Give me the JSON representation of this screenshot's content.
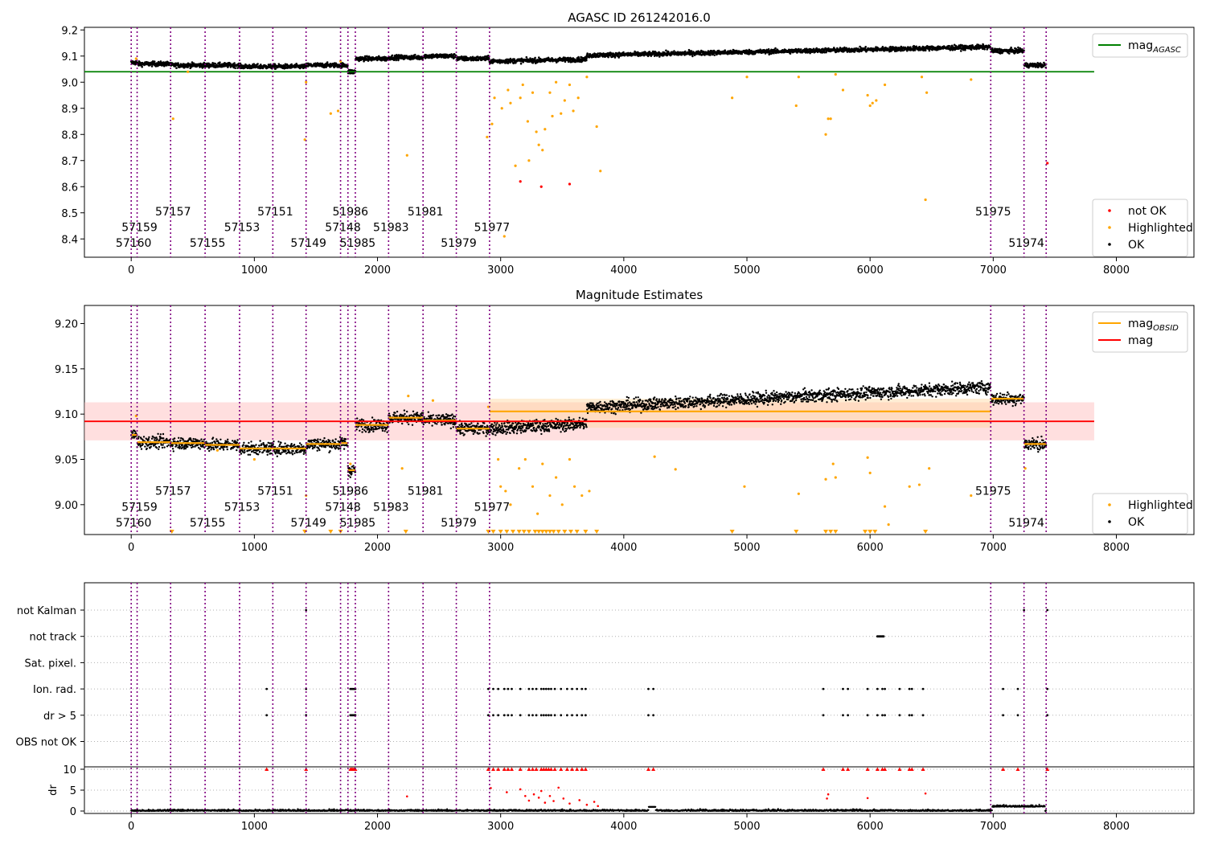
{
  "figure": {
    "panels": [
      {
        "title": "AGASC ID 261242016.0"
      },
      {
        "title": "Magnitude Estimates"
      },
      {
        "title": ""
      }
    ]
  },
  "colors": {
    "ok": "#000000",
    "highlighted": "#FFA500",
    "not_ok": "#FF0000",
    "agasc_line": "#008000",
    "obs_line": "#FFA500",
    "mag_line": "#FF0000",
    "obs_boundary": "#800080",
    "mag_band": "#FFC0C0",
    "obs_band": "#FFD8A0",
    "grid": "#B0B0B0"
  },
  "chart_data": [
    {
      "type": "scatter",
      "title": "AGASC ID 261242016.0",
      "xlim": [
        -380,
        8630
      ],
      "ylim": [
        8.33,
        9.21
      ],
      "xticks": [
        0,
        1000,
        2000,
        3000,
        4000,
        5000,
        6000,
        7000,
        8000
      ],
      "yticks": [
        8.4,
        8.5,
        8.6,
        8.7,
        8.8,
        8.9,
        9.0,
        9.1,
        9.2
      ],
      "ytick_labels": [
        "8.4",
        "8.5",
        "8.6",
        "8.7",
        "8.8",
        "8.9",
        "9.0",
        "9.1",
        "9.2"
      ],
      "hline": {
        "y": 9.04,
        "x_range": [
          -380,
          7820
        ],
        "label": "mag",
        "label_sub": "AGASC"
      },
      "legend_lines": {
        "position": "top-right",
        "entries": [
          {
            "label": "mag",
            "sub": "AGASC",
            "color": "#008000"
          }
        ]
      },
      "legend_points": {
        "position": "bottom-right",
        "entries": [
          {
            "label": "not OK",
            "color": "#FF0000"
          },
          {
            "label": "Highlighted",
            "color": "#FFA500"
          },
          {
            "label": "OK",
            "color": "#000000"
          }
        ]
      },
      "obsids": [
        {
          "obsid": "57160",
          "x": 0,
          "end": 48,
          "level": 9.075
        },
        {
          "obsid": "57159",
          "x": 48,
          "end": 320,
          "level": 9.07
        },
        {
          "obsid": "57157",
          "x": 320,
          "end": 600,
          "level": 9.065
        },
        {
          "obsid": "57155",
          "x": 600,
          "end": 880,
          "level": 9.065
        },
        {
          "obsid": "57153",
          "x": 880,
          "end": 1150,
          "level": 9.06
        },
        {
          "obsid": "57151",
          "x": 1150,
          "end": 1420,
          "level": 9.06
        },
        {
          "obsid": "57149",
          "x": 1420,
          "end": 1700,
          "level": 9.065
        },
        {
          "obsid": "57148",
          "x": 1700,
          "end": 1760,
          "level": 9.065
        },
        {
          "obsid": "51986",
          "x": 1760,
          "end": 1820,
          "level": 9.04
        },
        {
          "obsid": "51985",
          "x": 1820,
          "end": 2090,
          "level": 9.09
        },
        {
          "obsid": "51983",
          "x": 2090,
          "end": 2370,
          "level": 9.095
        },
        {
          "obsid": "51981",
          "x": 2370,
          "end": 2640,
          "level": 9.1
        },
        {
          "obsid": "51979",
          "x": 2640,
          "end": 2910,
          "level": 9.09
        },
        {
          "obsid": "51977",
          "x": 2910,
          "end": 6980,
          "level": 9.095
        },
        {
          "obsid": "51975",
          "x": 6980,
          "end": 7250,
          "level": 9.12
        },
        {
          "obsid": "51974",
          "x": 7250,
          "end": 7430,
          "level": 9.065
        }
      ],
      "obsid_label_rows": [
        8.37,
        8.43,
        8.49
      ],
      "highlighted_sample": [
        [
          40,
          9.09
        ],
        [
          340,
          8.86
        ],
        [
          460,
          9.04
        ],
        [
          1410,
          8.78
        ],
        [
          1420,
          9.0
        ],
        [
          1620,
          8.88
        ],
        [
          1680,
          8.89
        ],
        [
          1700,
          9.08
        ],
        [
          2240,
          8.72
        ],
        [
          2890,
          8.79
        ],
        [
          2930,
          8.84
        ],
        [
          2950,
          8.94
        ],
        [
          3010,
          8.9
        ],
        [
          3030,
          8.41
        ],
        [
          3060,
          8.97
        ],
        [
          3080,
          8.92
        ],
        [
          3120,
          8.68
        ],
        [
          3160,
          8.94
        ],
        [
          3180,
          8.99
        ],
        [
          3220,
          8.85
        ],
        [
          3230,
          8.7
        ],
        [
          3260,
          8.96
        ],
        [
          3290,
          8.81
        ],
        [
          3310,
          8.76
        ],
        [
          3340,
          8.74
        ],
        [
          3360,
          8.82
        ],
        [
          3400,
          8.96
        ],
        [
          3420,
          8.87
        ],
        [
          3450,
          9.0
        ],
        [
          3490,
          8.88
        ],
        [
          3520,
          8.93
        ],
        [
          3560,
          8.99
        ],
        [
          3590,
          8.89
        ],
        [
          3630,
          8.94
        ],
        [
          3700,
          9.02
        ],
        [
          3780,
          8.83
        ],
        [
          3810,
          8.66
        ],
        [
          4880,
          8.94
        ],
        [
          5000,
          9.02
        ],
        [
          5400,
          8.91
        ],
        [
          5420,
          9.02
        ],
        [
          5640,
          8.8
        ],
        [
          5660,
          8.86
        ],
        [
          5680,
          8.86
        ],
        [
          5720,
          9.03
        ],
        [
          5780,
          8.97
        ],
        [
          5980,
          8.95
        ],
        [
          6000,
          8.91
        ],
        [
          6020,
          8.92
        ],
        [
          6050,
          8.93
        ],
        [
          6120,
          8.99
        ],
        [
          6420,
          9.02
        ],
        [
          6450,
          8.55
        ],
        [
          6460,
          8.96
        ],
        [
          6820,
          9.01
        ]
      ],
      "not_ok_sample": [
        [
          3160,
          8.62
        ],
        [
          3330,
          8.6
        ],
        [
          3560,
          8.61
        ],
        [
          7440,
          8.69
        ]
      ]
    },
    {
      "type": "scatter",
      "title": "Magnitude Estimates",
      "xlim": [
        -380,
        8630
      ],
      "ylim": [
        8.967,
        9.22
      ],
      "xticks": [
        0,
        1000,
        2000,
        3000,
        4000,
        5000,
        6000,
        7000,
        8000
      ],
      "yticks": [
        9.0,
        9.05,
        9.1,
        9.15,
        9.2
      ],
      "ytick_labels": [
        "9.00",
        "9.05",
        "9.10",
        "9.15",
        "9.20"
      ],
      "mag": {
        "value": 9.092,
        "band": [
          9.071,
          9.113
        ],
        "x_range": [
          -380,
          7820
        ]
      },
      "legend_lines": {
        "position": "top-right",
        "entries": [
          {
            "label": "mag",
            "sub": "OBSID",
            "color": "#FFA500"
          },
          {
            "label": "mag",
            "sub": "",
            "color": "#FF0000"
          }
        ]
      },
      "legend_points": {
        "position": "bottom-right",
        "entries": [
          {
            "label": "Highlighted",
            "color": "#FFA500"
          },
          {
            "label": "OK",
            "color": "#000000"
          }
        ]
      },
      "obsid_label_rows": [
        8.976,
        8.993,
        9.011
      ],
      "obs_mag": [
        {
          "x0": 0,
          "x1": 48,
          "mag": 9.077
        },
        {
          "x0": 48,
          "x1": 320,
          "mag": 9.069
        },
        {
          "x0": 320,
          "x1": 600,
          "mag": 9.068
        },
        {
          "x0": 600,
          "x1": 880,
          "mag": 9.066
        },
        {
          "x0": 880,
          "x1": 1150,
          "mag": 9.062
        },
        {
          "x0": 1150,
          "x1": 1420,
          "mag": 9.062
        },
        {
          "x0": 1420,
          "x1": 1700,
          "mag": 9.067
        },
        {
          "x0": 1700,
          "x1": 1760,
          "mag": 9.068
        },
        {
          "x0": 1760,
          "x1": 1820,
          "mag": 9.038
        },
        {
          "x0": 1820,
          "x1": 2090,
          "mag": 9.088
        },
        {
          "x0": 2090,
          "x1": 2370,
          "mag": 9.096
        },
        {
          "x0": 2370,
          "x1": 2640,
          "mag": 9.093
        },
        {
          "x0": 2640,
          "x1": 2910,
          "mag": 9.084
        },
        {
          "x0": 2910,
          "x1": 6980,
          "mag": 9.103
        },
        {
          "x0": 6980,
          "x1": 7250,
          "mag": 9.117
        },
        {
          "x0": 7250,
          "x1": 7430,
          "mag": 9.067
        }
      ],
      "obs_band": {
        "x0": 2910,
        "x1": 6980,
        "band": [
          9.085,
          9.117
        ]
      },
      "highlighted_sample": [
        [
          40,
          9.098
        ],
        [
          700,
          9.06
        ],
        [
          1000,
          9.05
        ],
        [
          1420,
          9.01
        ],
        [
          1780,
          9.045
        ],
        [
          2200,
          9.04
        ],
        [
          2250,
          9.12
        ],
        [
          2450,
          9.115
        ],
        [
          2900,
          9.108
        ],
        [
          2980,
          9.05
        ],
        [
          3000,
          9.02
        ],
        [
          3040,
          9.015
        ],
        [
          3080,
          9.0
        ],
        [
          3150,
          9.04
        ],
        [
          3200,
          9.05
        ],
        [
          3260,
          9.02
        ],
        [
          3300,
          8.99
        ],
        [
          3340,
          9.045
        ],
        [
          3400,
          9.01
        ],
        [
          3450,
          9.03
        ],
        [
          3500,
          9.0
        ],
        [
          3560,
          9.05
        ],
        [
          3600,
          9.02
        ],
        [
          3660,
          9.01
        ],
        [
          3720,
          9.015
        ],
        [
          4250,
          9.053
        ],
        [
          4420,
          9.039
        ],
        [
          4980,
          9.02
        ],
        [
          5420,
          9.012
        ],
        [
          5640,
          9.028
        ],
        [
          5700,
          9.045
        ],
        [
          5720,
          9.03
        ],
        [
          5980,
          9.052
        ],
        [
          6000,
          9.035
        ],
        [
          6120,
          8.998
        ],
        [
          6150,
          8.978
        ],
        [
          6320,
          9.02
        ],
        [
          6400,
          9.022
        ],
        [
          6480,
          9.04
        ],
        [
          6820,
          9.01
        ],
        [
          7260,
          9.04
        ]
      ],
      "low_triangle_x": [
        330,
        1410,
        1620,
        1700,
        2230,
        2900,
        2940,
        3000,
        3050,
        3100,
        3150,
        3190,
        3230,
        3280,
        3310,
        3340,
        3370,
        3400,
        3430,
        3470,
        3520,
        3570,
        3620,
        3690,
        3780,
        4880,
        5400,
        5640,
        5680,
        5720,
        5960,
        6000,
        6040,
        6450
      ]
    },
    {
      "type": "scatter",
      "title": "",
      "xlim": [
        -380,
        8630
      ],
      "xticks": [
        0,
        1000,
        2000,
        3000,
        4000,
        5000,
        6000,
        7000,
        8000
      ],
      "flag_rows": [
        "not Kalman",
        "not track",
        "Sat. pixel.",
        "Ion. rad.",
        "dr > 5",
        "OBS not OK"
      ],
      "dr": {
        "ylabel": "dr",
        "yticks": [
          0,
          5,
          10
        ],
        "ylim": [
          -0.5,
          10.5
        ],
        "cap": 10
      },
      "flags": {
        "not Kalman": [
          1420,
          7250,
          7440
        ],
        "not track": [
          6060,
          6070,
          6080,
          6090,
          6100,
          6110
        ],
        "Sat. pixel.": [],
        "Ion. rad.": [
          1100,
          1420,
          1780,
          1790,
          1800,
          1810,
          1820,
          2900,
          2940,
          2980,
          3030,
          3060,
          3090,
          3160,
          3230,
          3260,
          3290,
          3330,
          3350,
          3370,
          3390,
          3410,
          3440,
          3490,
          3540,
          3580,
          3620,
          3660,
          3690,
          4200,
          4240,
          5620,
          5780,
          5820,
          5980,
          6060,
          6100,
          6120,
          6240,
          6320,
          6340,
          6430,
          7080,
          7200,
          7440
        ],
        "dr > 5": [
          1100,
          1420,
          1780,
          1790,
          1800,
          1810,
          1820,
          2900,
          2940,
          2980,
          3030,
          3060,
          3090,
          3160,
          3230,
          3260,
          3290,
          3330,
          3350,
          3370,
          3390,
          3410,
          3440,
          3490,
          3540,
          3580,
          3620,
          3660,
          3690,
          4200,
          4240,
          5620,
          5780,
          5820,
          5980,
          6060,
          6100,
          6120,
          6240,
          6320,
          6340,
          6430,
          7080,
          7200,
          7440
        ],
        "OBS not OK": []
      },
      "dr_outliers": [
        [
          2240,
          3.5
        ],
        [
          2920,
          5.5
        ],
        [
          3050,
          4.5
        ],
        [
          3160,
          5.2
        ],
        [
          3200,
          3.6
        ],
        [
          3230,
          2.5
        ],
        [
          3270,
          4.0
        ],
        [
          3310,
          3.2
        ],
        [
          3330,
          4.8
        ],
        [
          3360,
          2.0
        ],
        [
          3400,
          3.6
        ],
        [
          3430,
          2.4
        ],
        [
          3470,
          5.6
        ],
        [
          3510,
          3.0
        ],
        [
          3560,
          1.8
        ],
        [
          3640,
          2.6
        ],
        [
          3700,
          1.5
        ],
        [
          3760,
          2.2
        ],
        [
          3790,
          1.2
        ],
        [
          5650,
          3.0
        ],
        [
          5660,
          4.0
        ],
        [
          5980,
          3.1
        ],
        [
          6450,
          4.2
        ]
      ]
    }
  ]
}
